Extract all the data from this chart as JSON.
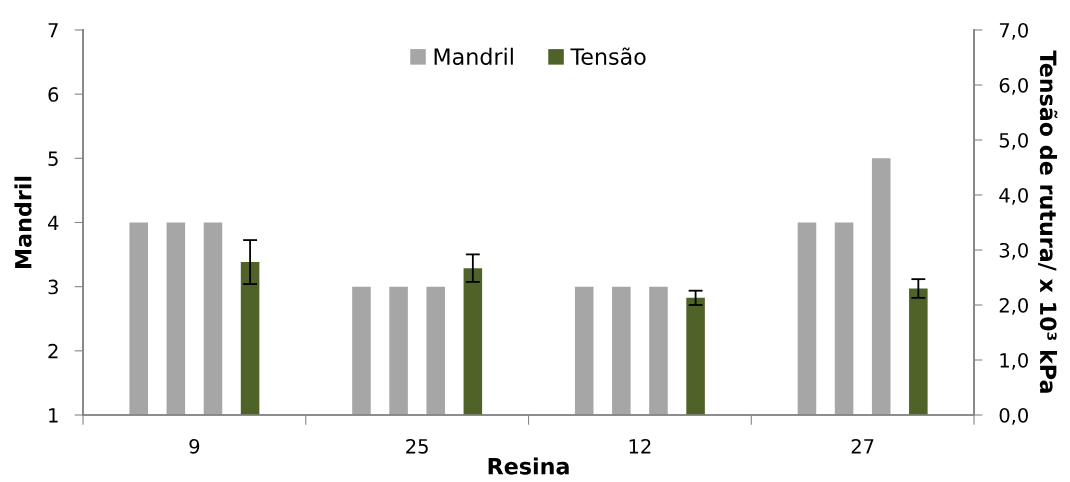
{
  "chart_data": {
    "type": "bar",
    "xlabel": "Resina",
    "ylabel": "Mandril",
    "y2label": "Tensão de rutura/ x 10³ kPa",
    "categories": [
      "9",
      "25",
      "12",
      "27"
    ],
    "series": [
      {
        "name": "Mandril",
        "color": "#a6a6a6",
        "values": [
          4,
          3,
          3,
          4
        ]
      },
      {
        "color": "#a6a6a6",
        "values": [
          4,
          3,
          3,
          4
        ]
      },
      {
        "color": "#a6a6a6",
        "values": [
          4,
          3,
          3,
          5
        ]
      },
      {
        "name": "Tensão",
        "color": "#4f6228",
        "axis": "y2",
        "values": [
          2.78,
          2.67,
          2.13,
          2.3
        ],
        "errors": [
          0.4,
          0.25,
          0.13,
          0.17
        ]
      }
    ],
    "ylim": [
      1,
      7
    ],
    "yticks": [
      1,
      2,
      3,
      4,
      5,
      6,
      7
    ],
    "y2lim": [
      0,
      7
    ],
    "y2ticks": [
      {
        "value": 0,
        "label": "0,0"
      },
      {
        "value": 1,
        "label": "1,0"
      },
      {
        "value": 2,
        "label": "2,0"
      },
      {
        "value": 3,
        "label": "3,0"
      },
      {
        "value": 4,
        "label": "4,0"
      },
      {
        "value": 5,
        "label": "5,0"
      },
      {
        "value": 6,
        "label": "6,0"
      },
      {
        "value": 7,
        "label": "7,0"
      }
    ],
    "legend": "top"
  }
}
